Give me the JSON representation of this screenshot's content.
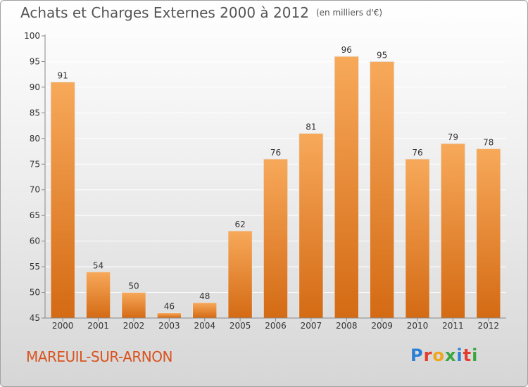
{
  "header": {
    "title": "Achats et Charges Externes 2000 à 2012",
    "unit": "(en milliers d'€)"
  },
  "footer": {
    "commune": "MAREUIL-SUR-ARNON",
    "logo_text": "Proxiti",
    "logo_colors": [
      "#2a7fd4",
      "#e53b2c",
      "#f1a51d",
      "#3aa63f",
      "#2a7fd4",
      "#e53b2c",
      "#3aa63f"
    ]
  },
  "colors": {
    "bar_top": "#f7a95a",
    "bar_bottom": "#d46a14",
    "axis": "#888888",
    "grid": "#ffffff"
  },
  "chart_data": {
    "type": "bar",
    "title": "Achats et Charges Externes 2000 à 2012",
    "xlabel": "",
    "ylabel": "",
    "categories": [
      "2000",
      "2001",
      "2002",
      "2003",
      "2004",
      "2005",
      "2006",
      "2007",
      "2008",
      "2009",
      "2010",
      "2011",
      "2012"
    ],
    "values": [
      91,
      54,
      50,
      46,
      48,
      62,
      76,
      81,
      96,
      95,
      76,
      79,
      78
    ],
    "ylim": [
      45,
      100
    ],
    "yticks": [
      45,
      50,
      55,
      60,
      65,
      70,
      75,
      80,
      85,
      90,
      95,
      100
    ],
    "grid": true,
    "legend": "none"
  }
}
